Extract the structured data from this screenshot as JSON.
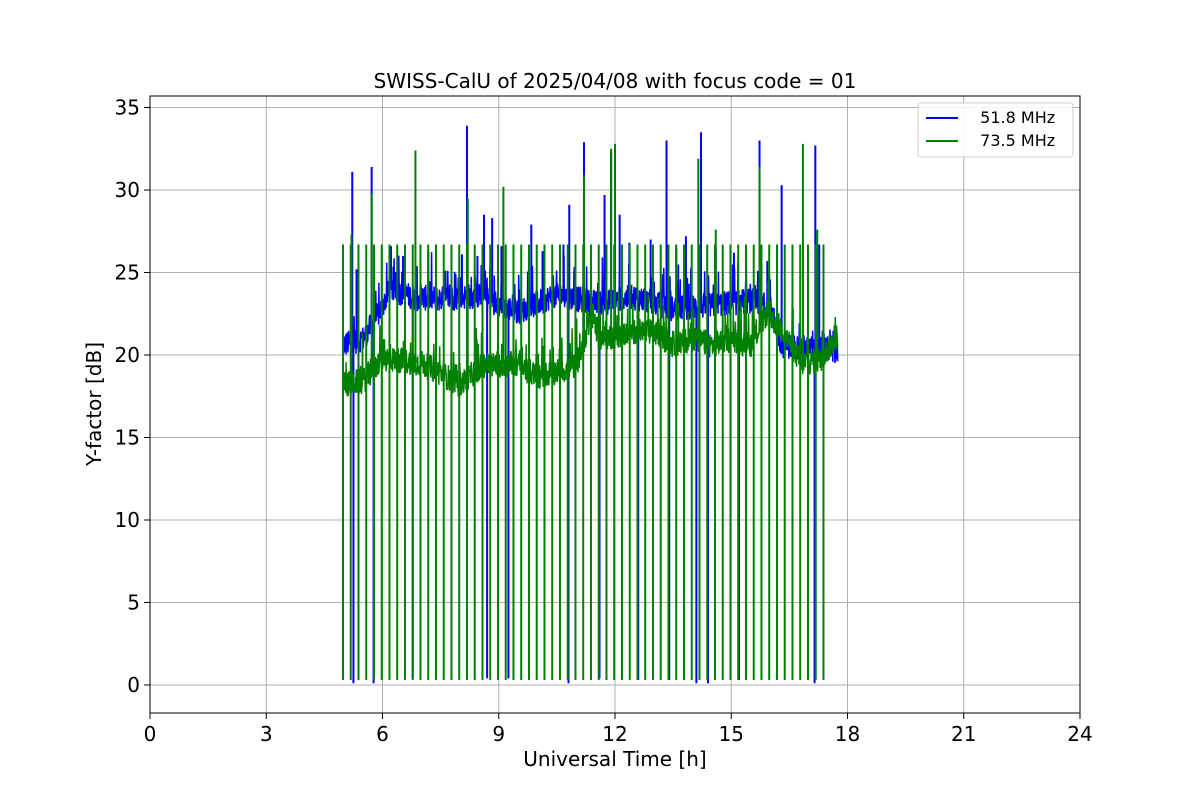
{
  "chart_data": {
    "type": "line",
    "title": "SWISS-CalU of 2025/04/08 with focus code = 01",
    "xlabel": "Universal Time [h]",
    "ylabel": "Y-factor [dB]",
    "xlim": [
      0,
      24
    ],
    "ylim": [
      -1.7,
      35.7
    ],
    "xticks": [
      0,
      3,
      6,
      9,
      12,
      15,
      18,
      21,
      24
    ],
    "yticks": [
      0,
      5,
      10,
      15,
      20,
      25,
      30,
      35
    ],
    "grid": true,
    "legend_position": "top-right",
    "series": [
      {
        "name": "  51.8 MHz",
        "color": "#0000ff",
        "baseline": [
          [
            4.98,
            20.6
          ],
          [
            5.5,
            21.0
          ],
          [
            5.9,
            22.5
          ],
          [
            6.2,
            24.0
          ],
          [
            6.8,
            23.5
          ],
          [
            7.5,
            23.4
          ],
          [
            8.5,
            23.6
          ],
          [
            9.5,
            22.6
          ],
          [
            10.5,
            23.7
          ],
          [
            11.5,
            23.1
          ],
          [
            12.5,
            23.5
          ],
          [
            13.5,
            22.8
          ],
          [
            14.5,
            23.0
          ],
          [
            15.5,
            23.3
          ],
          [
            16.0,
            22.9
          ],
          [
            16.3,
            20.6
          ],
          [
            17.0,
            20.4
          ],
          [
            17.75,
            20.3
          ]
        ],
        "spikes": [
          [
            5.22,
            31.1
          ],
          [
            5.33,
            25.2
          ],
          [
            5.72,
            31.4
          ],
          [
            6.22,
            26.6
          ],
          [
            6.53,
            26.0
          ],
          [
            7.18,
            26.3
          ],
          [
            7.68,
            25.1
          ],
          [
            8.05,
            26.1
          ],
          [
            8.18,
            33.9
          ],
          [
            8.45,
            26.0
          ],
          [
            8.62,
            28.5
          ],
          [
            8.83,
            28.3
          ],
          [
            9.07,
            26.6
          ],
          [
            9.84,
            27.9
          ],
          [
            10.13,
            26.3
          ],
          [
            10.67,
            26.7
          ],
          [
            10.82,
            29.1
          ],
          [
            11.2,
            32.9
          ],
          [
            11.73,
            29.7
          ],
          [
            11.9,
            32.3
          ],
          [
            12.12,
            28.5
          ],
          [
            12.37,
            26.8
          ],
          [
            12.92,
            27.0
          ],
          [
            13.33,
            33.0
          ],
          [
            13.58,
            26.5
          ],
          [
            13.83,
            27.2
          ],
          [
            14.22,
            33.5
          ],
          [
            14.6,
            26.4
          ],
          [
            15.07,
            26.2
          ],
          [
            15.73,
            33.0
          ],
          [
            15.93,
            25.7
          ],
          [
            16.3,
            30.3
          ],
          [
            17.17,
            32.7
          ],
          [
            17.27,
            26.7
          ]
        ],
        "dips": [
          [
            4.98,
            0.8
          ],
          [
            5.25,
            0.1
          ],
          [
            5.77,
            0.1
          ],
          [
            6.78,
            0.4
          ],
          [
            8.7,
            0.4
          ],
          [
            9.25,
            0.4
          ],
          [
            10.8,
            0.1
          ],
          [
            11.6,
            0.4
          ],
          [
            12.6,
            0.3
          ],
          [
            13.4,
            0.3
          ],
          [
            14.1,
            0.1
          ],
          [
            14.4,
            0.1
          ],
          [
            15.2,
            0.3
          ],
          [
            17.15,
            0.1
          ]
        ]
      },
      {
        "name": "  73.5 MHz",
        "color": "#008000",
        "baseline": [
          [
            4.98,
            18.2
          ],
          [
            5.5,
            18.4
          ],
          [
            6.0,
            19.8
          ],
          [
            7.0,
            19.5
          ],
          [
            7.5,
            18.9
          ],
          [
            8.0,
            18.2
          ],
          [
            8.6,
            19.4
          ],
          [
            9.5,
            19.4
          ],
          [
            10.0,
            18.7
          ],
          [
            11.0,
            19.3
          ],
          [
            11.4,
            22.5
          ],
          [
            11.6,
            21.0
          ],
          [
            12.5,
            21.4
          ],
          [
            13.0,
            21.4
          ],
          [
            13.5,
            20.6
          ],
          [
            14.0,
            21.0
          ],
          [
            14.5,
            20.6
          ],
          [
            15.0,
            21.0
          ],
          [
            15.5,
            20.6
          ],
          [
            15.9,
            22.5
          ],
          [
            16.3,
            21.6
          ],
          [
            16.8,
            19.5
          ],
          [
            17.3,
            19.7
          ],
          [
            17.75,
            21.2
          ]
        ],
        "spikes": [
          [
            5.2,
            27.3
          ],
          [
            5.72,
            29.8
          ],
          [
            6.85,
            32.4
          ],
          [
            8.2,
            29.5
          ],
          [
            9.12,
            30.2
          ],
          [
            11.2,
            30.9
          ],
          [
            11.9,
            32.5
          ],
          [
            12.0,
            32.8
          ],
          [
            14.15,
            31.9
          ],
          [
            14.6,
            27.6
          ],
          [
            15.73,
            31.4
          ],
          [
            16.85,
            32.8
          ],
          [
            17.22,
            27.6
          ]
        ],
        "period_h": 0.2,
        "comb_start_h": 4.98,
        "comb_end_h": 17.45,
        "comb_top": 26.7,
        "comb_bottom": 0.3
      }
    ]
  }
}
